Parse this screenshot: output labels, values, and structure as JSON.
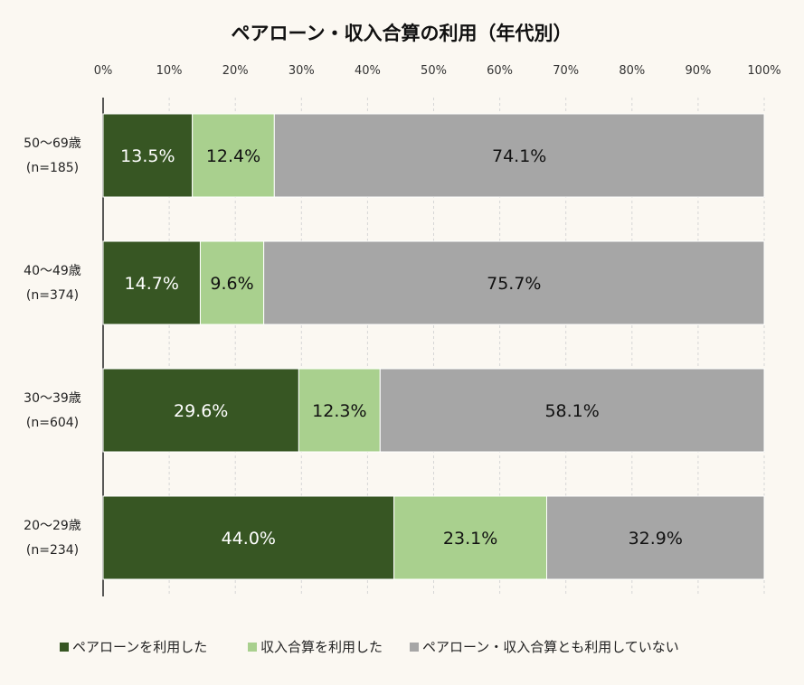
{
  "chart_data": {
    "type": "bar",
    "orientation": "horizontal",
    "stacked": true,
    "title": "ペアローン・収入合算の利用（年代別）",
    "xlabel": "",
    "ylabel": "",
    "xlim": [
      0,
      100
    ],
    "x_ticks": [
      "0%",
      "10%",
      "20%",
      "30%",
      "40%",
      "50%",
      "60%",
      "70%",
      "80%",
      "90%",
      "100%"
    ],
    "grid": true,
    "legend_position": "bottom",
    "categories": [
      {
        "label": "50〜69歳",
        "n": "(n=185)"
      },
      {
        "label": "40〜49歳",
        "n": "(n=374)"
      },
      {
        "label": "30〜39歳",
        "n": "(n=604)"
      },
      {
        "label": "20〜29歳",
        "n": "(n=234)"
      }
    ],
    "series": [
      {
        "name": "ペアローンを利用した",
        "color": "#375623",
        "label_color": "#ffffff",
        "values": [
          13.5,
          14.7,
          29.6,
          44.0
        ],
        "labels": [
          "13.5%",
          "14.7%",
          "29.6%",
          "44.0%"
        ]
      },
      {
        "name": "収入合算を利用した",
        "color": "#a9d08e",
        "label_color": "#111111",
        "values": [
          12.4,
          9.6,
          12.3,
          23.1
        ],
        "labels": [
          "12.4%",
          "9.6%",
          "12.3%",
          "23.1%"
        ]
      },
      {
        "name": "ペアローン・収入合算とも利用していない",
        "color": "#a6a6a6",
        "label_color": "#111111",
        "values": [
          74.1,
          75.7,
          58.1,
          32.9
        ],
        "labels": [
          "74.1%",
          "75.7%",
          "58.1%",
          "32.9%"
        ]
      }
    ]
  }
}
